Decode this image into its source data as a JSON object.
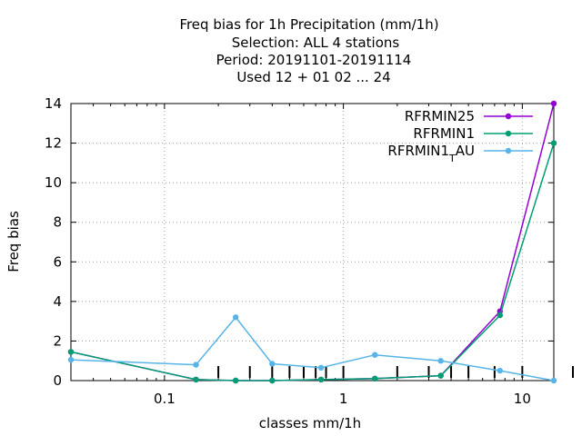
{
  "chart_data": {
    "type": "line",
    "title_lines": [
      "Freq bias  for 1h Precipitation (mm/1h)",
      "Selection: ALL      4 stations",
      "Period: 20191101-20191114",
      "Used  12 + 01 02 ... 24"
    ],
    "xlabel": "classes mm/1h",
    "ylabel": "Freq bias",
    "x_scale": "log",
    "xlim": [
      0.03,
      15
    ],
    "ylim": [
      0,
      14
    ],
    "x_ticks": [
      {
        "value": 0.1,
        "label": "0.1"
      },
      {
        "value": 1,
        "label": "1"
      },
      {
        "value": 10,
        "label": "10"
      }
    ],
    "y_ticks": [
      {
        "value": 0,
        "label": "0"
      },
      {
        "value": 2,
        "label": "2"
      },
      {
        "value": 4,
        "label": "4"
      },
      {
        "value": 6,
        "label": "6"
      },
      {
        "value": 8,
        "label": "8"
      },
      {
        "value": 10,
        "label": "10"
      },
      {
        "value": 12,
        "label": "12"
      },
      {
        "value": 14,
        "label": "14"
      }
    ],
    "class_markers": [
      0.2,
      0.3,
      0.4,
      0.5,
      0.6,
      0.7,
      0.8,
      1,
      2,
      3,
      4,
      5,
      7,
      10,
      20
    ],
    "grid": true,
    "legend_position": "top-right",
    "series": [
      {
        "name": "RFRMIN25",
        "color": "#9400d3",
        "points": [
          [
            0.03,
            1.45
          ],
          [
            0.15,
            0.05
          ],
          [
            0.25,
            0.0
          ],
          [
            0.4,
            0.0
          ],
          [
            0.75,
            0.05
          ],
          [
            1.5,
            0.1
          ],
          [
            3.5,
            0.25
          ],
          [
            7.5,
            3.5
          ],
          [
            15,
            14.0
          ]
        ]
      },
      {
        "name": "RFRMIN1",
        "color": "#009e73",
        "points": [
          [
            0.03,
            1.45
          ],
          [
            0.15,
            0.05
          ],
          [
            0.25,
            0.0
          ],
          [
            0.4,
            0.0
          ],
          [
            0.75,
            0.05
          ],
          [
            1.5,
            0.1
          ],
          [
            3.5,
            0.25
          ],
          [
            7.5,
            3.3
          ],
          [
            15,
            12.0
          ]
        ]
      },
      {
        "name": "RFRMIN1",
        "name_sub": "T",
        "name_tail": "AU",
        "color": "#56b4e9",
        "points": [
          [
            0.03,
            1.05
          ],
          [
            0.15,
            0.8
          ],
          [
            0.25,
            3.2
          ],
          [
            0.4,
            0.85
          ],
          [
            0.75,
            0.65
          ],
          [
            1.5,
            1.3
          ],
          [
            3.5,
            1.0
          ],
          [
            7.5,
            0.5
          ],
          [
            15,
            0.0
          ]
        ]
      }
    ]
  }
}
